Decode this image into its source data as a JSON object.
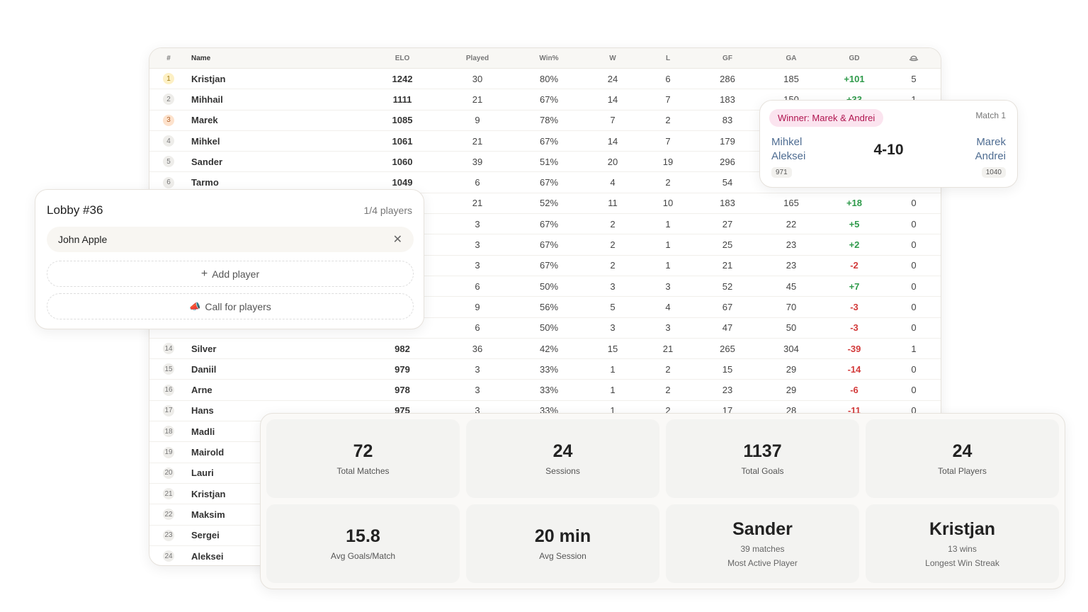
{
  "table": {
    "headers": [
      "#",
      "Name",
      "ELO",
      "Played",
      "Win%",
      "W",
      "L",
      "GF",
      "GA",
      "GD"
    ],
    "last_header_icon": "hat-icon",
    "rows": [
      {
        "rank": "1",
        "name": "Kristjan",
        "elo": "1242",
        "played": "30",
        "win": "80%",
        "w": "24",
        "l": "6",
        "gf": "286",
        "ga": "185",
        "gd": "+101",
        "hat": "5"
      },
      {
        "rank": "2",
        "name": "Mihhail",
        "elo": "1111",
        "played": "21",
        "win": "67%",
        "w": "14",
        "l": "7",
        "gf": "183",
        "ga": "150",
        "gd": "+33",
        "hat": "1"
      },
      {
        "rank": "3",
        "name": "Marek",
        "elo": "1085",
        "played": "9",
        "win": "78%",
        "w": "7",
        "l": "2",
        "gf": "83",
        "ga": "",
        "gd": "",
        "hat": ""
      },
      {
        "rank": "4",
        "name": "Mihkel",
        "elo": "1061",
        "played": "21",
        "win": "67%",
        "w": "14",
        "l": "7",
        "gf": "179",
        "ga": "",
        "gd": "",
        "hat": ""
      },
      {
        "rank": "5",
        "name": "Sander",
        "elo": "1060",
        "played": "39",
        "win": "51%",
        "w": "20",
        "l": "19",
        "gf": "296",
        "ga": "",
        "gd": "",
        "hat": ""
      },
      {
        "rank": "6",
        "name": "Tarmo",
        "elo": "1049",
        "played": "6",
        "win": "67%",
        "w": "4",
        "l": "2",
        "gf": "54",
        "ga": "",
        "gd": "",
        "hat": ""
      },
      {
        "rank": "",
        "name": "",
        "elo": "",
        "played": "21",
        "win": "52%",
        "w": "11",
        "l": "10",
        "gf": "183",
        "ga": "165",
        "gd": "+18",
        "hat": "0"
      },
      {
        "rank": "",
        "name": "",
        "elo": "",
        "played": "3",
        "win": "67%",
        "w": "2",
        "l": "1",
        "gf": "27",
        "ga": "22",
        "gd": "+5",
        "hat": "0"
      },
      {
        "rank": "",
        "name": "",
        "elo": "",
        "played": "3",
        "win": "67%",
        "w": "2",
        "l": "1",
        "gf": "25",
        "ga": "23",
        "gd": "+2",
        "hat": "0"
      },
      {
        "rank": "",
        "name": "",
        "elo": "",
        "played": "3",
        "win": "67%",
        "w": "2",
        "l": "1",
        "gf": "21",
        "ga": "23",
        "gd": "-2",
        "hat": "0"
      },
      {
        "rank": "",
        "name": "",
        "elo": "",
        "played": "6",
        "win": "50%",
        "w": "3",
        "l": "3",
        "gf": "52",
        "ga": "45",
        "gd": "+7",
        "hat": "0"
      },
      {
        "rank": "",
        "name": "",
        "elo": "",
        "played": "9",
        "win": "56%",
        "w": "5",
        "l": "4",
        "gf": "67",
        "ga": "70",
        "gd": "-3",
        "hat": "0"
      },
      {
        "rank": "",
        "name": "",
        "elo": "",
        "played": "6",
        "win": "50%",
        "w": "3",
        "l": "3",
        "gf": "47",
        "ga": "50",
        "gd": "-3",
        "hat": "0"
      },
      {
        "rank": "14",
        "name": "Silver",
        "elo": "982",
        "played": "36",
        "win": "42%",
        "w": "15",
        "l": "21",
        "gf": "265",
        "ga": "304",
        "gd": "-39",
        "hat": "1"
      },
      {
        "rank": "15",
        "name": "Daniil",
        "elo": "979",
        "played": "3",
        "win": "33%",
        "w": "1",
        "l": "2",
        "gf": "15",
        "ga": "29",
        "gd": "-14",
        "hat": "0"
      },
      {
        "rank": "16",
        "name": "Arne",
        "elo": "978",
        "played": "3",
        "win": "33%",
        "w": "1",
        "l": "2",
        "gf": "23",
        "ga": "29",
        "gd": "-6",
        "hat": "0"
      },
      {
        "rank": "17",
        "name": "Hans",
        "elo": "975",
        "played": "3",
        "win": "33%",
        "w": "1",
        "l": "2",
        "gf": "17",
        "ga": "28",
        "gd": "-11",
        "hat": "0"
      },
      {
        "rank": "18",
        "name": "Madli",
        "elo": "",
        "played": "",
        "win": "",
        "w": "",
        "l": "",
        "gf": "",
        "ga": "",
        "gd": "",
        "hat": ""
      },
      {
        "rank": "19",
        "name": "Mairold",
        "elo": "",
        "played": "",
        "win": "",
        "w": "",
        "l": "",
        "gf": "",
        "ga": "",
        "gd": "",
        "hat": ""
      },
      {
        "rank": "20",
        "name": "Lauri",
        "elo": "",
        "played": "",
        "win": "",
        "w": "",
        "l": "",
        "gf": "",
        "ga": "",
        "gd": "",
        "hat": ""
      },
      {
        "rank": "21",
        "name": "Kristjan",
        "elo": "",
        "played": "",
        "win": "",
        "w": "",
        "l": "",
        "gf": "",
        "ga": "",
        "gd": "",
        "hat": ""
      },
      {
        "rank": "22",
        "name": "Maksim",
        "elo": "",
        "played": "",
        "win": "",
        "w": "",
        "l": "",
        "gf": "",
        "ga": "",
        "gd": "",
        "hat": ""
      },
      {
        "rank": "23",
        "name": "Sergei",
        "elo": "",
        "played": "",
        "win": "",
        "w": "",
        "l": "",
        "gf": "",
        "ga": "",
        "gd": "",
        "hat": ""
      },
      {
        "rank": "24",
        "name": "Aleksei",
        "elo": "",
        "played": "",
        "win": "",
        "w": "",
        "l": "",
        "gf": "",
        "ga": "",
        "gd": "",
        "hat": ""
      }
    ],
    "colors": {
      "positive": "#2e9a4a",
      "negative": "#d33a3a",
      "rank1": "#fdf0c4",
      "rank3": "#fde2cc"
    }
  },
  "match": {
    "winner_badge": "Winner: Marek & Andrei",
    "label": "Match 1",
    "team1": [
      "Mihkel",
      "Aleksei"
    ],
    "team1_elo": "971",
    "score": "4-10",
    "team2": [
      "Marek",
      "Andrei"
    ],
    "team2_elo": "1040"
  },
  "lobby": {
    "title": "Lobby #36",
    "count": "1/4 players",
    "player": "John Apple",
    "add_label": "Add player",
    "call_label": "Call for players"
  },
  "stats": [
    {
      "value": "72",
      "label": "Total Matches"
    },
    {
      "value": "24",
      "label": "Sessions"
    },
    {
      "value": "1137",
      "label": "Total Goals"
    },
    {
      "value": "24",
      "label": "Total Players"
    },
    {
      "value": "15.8",
      "label": "Avg Goals/Match"
    },
    {
      "value": "20 min",
      "label": "Avg Session"
    },
    {
      "value": "Sander",
      "sub": "39 matches",
      "label": "Most Active Player"
    },
    {
      "value": "Kristjan",
      "sub": "13 wins",
      "label": "Longest Win Streak"
    }
  ]
}
